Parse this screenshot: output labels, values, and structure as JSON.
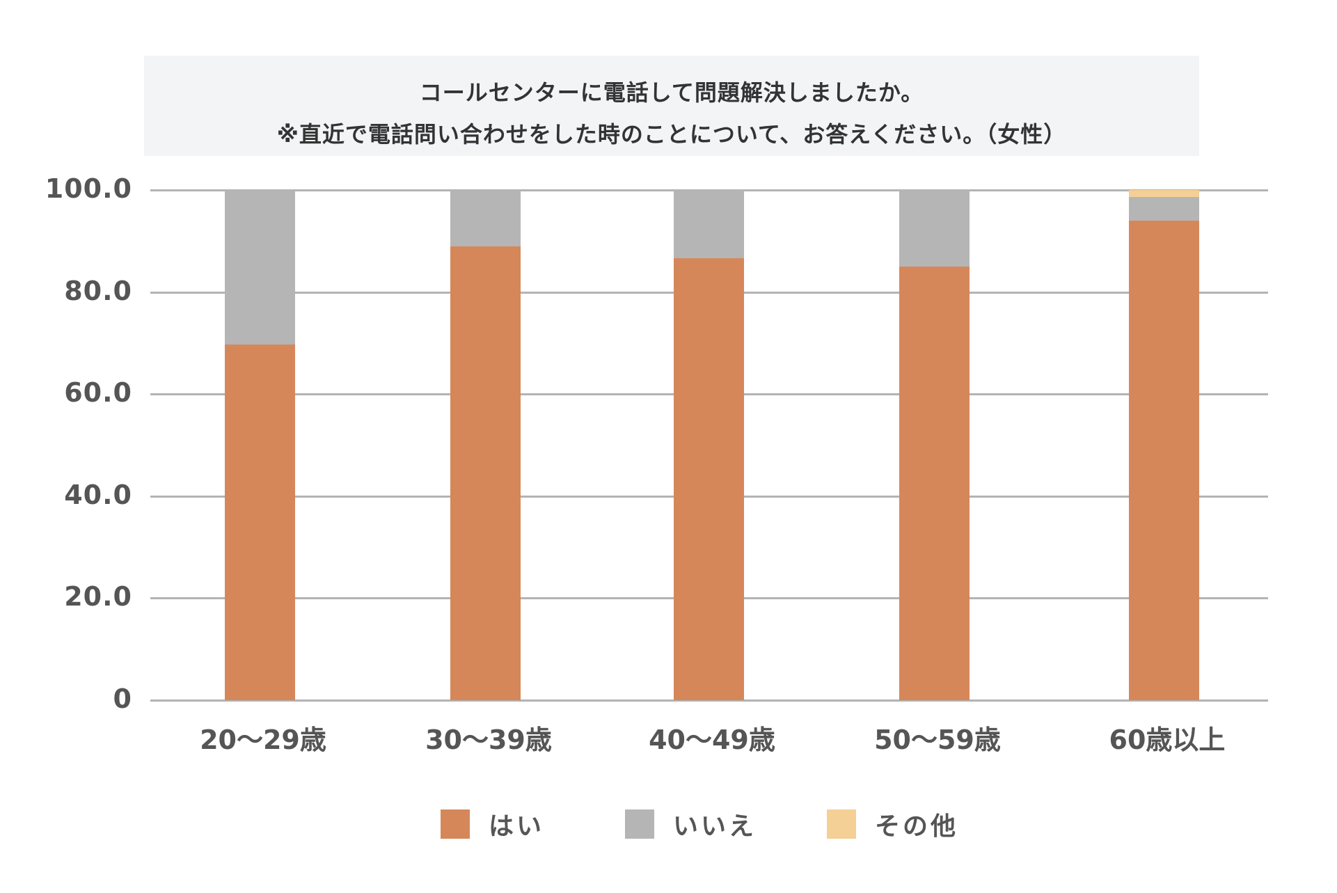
{
  "title": {
    "line1": "コールセンターに電話して問題解決しましたか。",
    "line2": "※直近で電話問い合わせをした時のことについて、お答えください。（女性）"
  },
  "colors": {
    "yes": "#d6875a",
    "no": "#b5b5b5",
    "other": "#f4cf96",
    "grid": "#b3b3b3",
    "title_bg": "#f2f4f6",
    "text": "#555555"
  },
  "y_axis": {
    "ticks": [
      "100.0",
      "80.0",
      "60.0",
      "40.0",
      "20.0",
      "0"
    ]
  },
  "x_axis": {
    "categories": [
      "20〜29歳",
      "30〜39歳",
      "40〜49歳",
      "50〜59歳",
      "60歳以上"
    ]
  },
  "legend": {
    "items": [
      {
        "label": "はい",
        "color": "#d6875a"
      },
      {
        "label": "いいえ",
        "color": "#b5b5b5"
      },
      {
        "label": "その他",
        "color": "#f4cf96"
      }
    ]
  },
  "chart_data": {
    "type": "bar",
    "stacked": true,
    "title": "コールセンターに電話して問題解決しましたか。 ※直近で電話問い合わせをした時のことについて、お答えください。（女性）",
    "xlabel": "",
    "ylabel": "",
    "ylim": [
      0,
      100
    ],
    "yticks": [
      0,
      20,
      40,
      60,
      80,
      100
    ],
    "grid": true,
    "legend_position": "bottom",
    "categories": [
      "20〜29歳",
      "30〜39歳",
      "40〜49歳",
      "50〜59歳",
      "60歳以上"
    ],
    "series": [
      {
        "name": "はい",
        "color": "#d6875a",
        "values": [
          69.7,
          88.9,
          86.6,
          85.0,
          94.0
        ]
      },
      {
        "name": "いいえ",
        "color": "#b5b5b5",
        "values": [
          30.3,
          11.1,
          13.4,
          15.0,
          4.6
        ]
      },
      {
        "name": "その他",
        "color": "#f4cf96",
        "values": [
          0.0,
          0.0,
          0.0,
          0.0,
          1.4
        ]
      }
    ]
  }
}
